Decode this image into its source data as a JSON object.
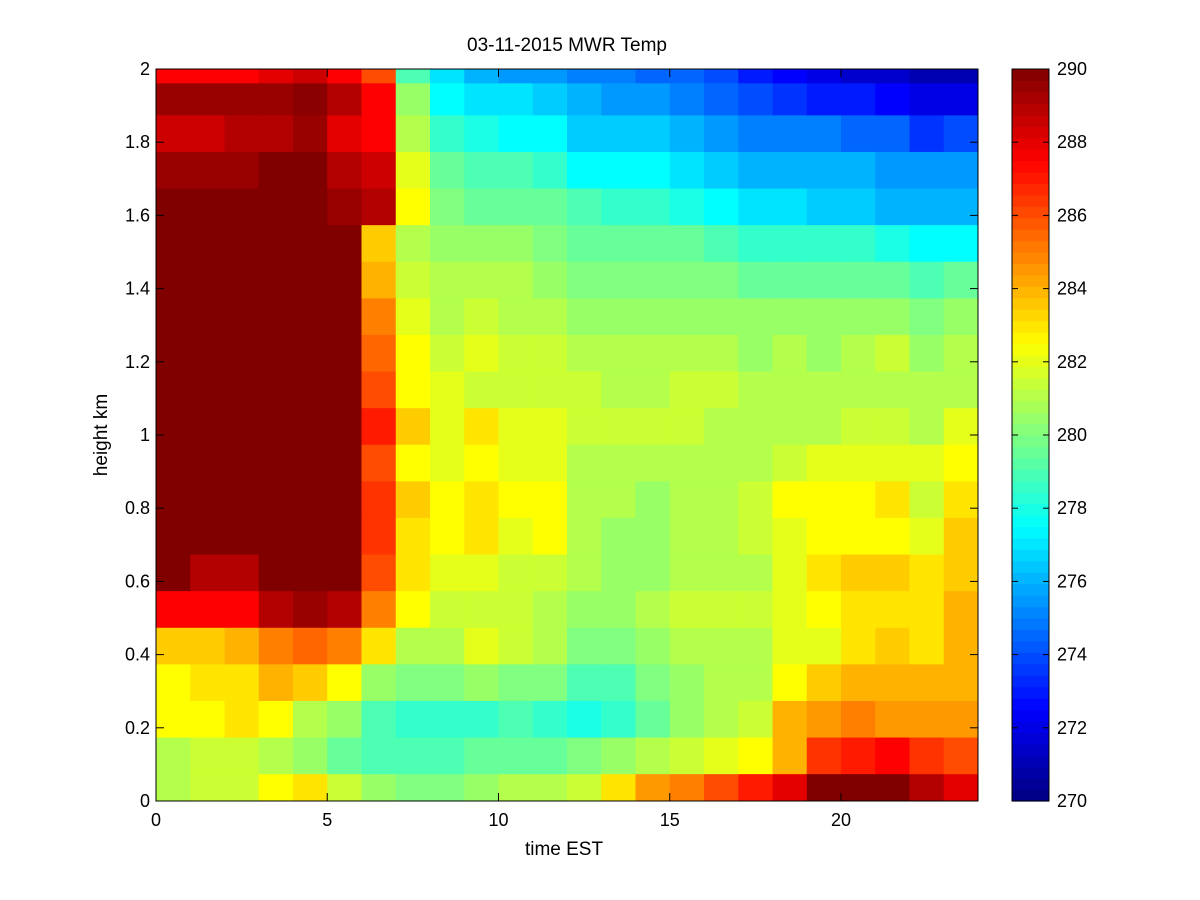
{
  "chart_data": {
    "type": "heatmap",
    "title": "03-11-2015 MWR Temp",
    "xlabel": "time EST",
    "ylabel": "height km",
    "xlim": [
      0,
      24
    ],
    "ylim": [
      0,
      2
    ],
    "x_ticks": [
      0,
      5,
      10,
      15,
      20
    ],
    "y_ticks": [
      0,
      0.2,
      0.4,
      0.6,
      0.8,
      1,
      1.2,
      1.4,
      1.6,
      1.8,
      2
    ],
    "y_tick_labels": [
      "0",
      "0.2",
      "0.4",
      "0.6",
      "0.8",
      "1",
      "1.2",
      "1.4",
      "1.6",
      "1.8",
      "2"
    ],
    "x_centers": [
      0.5,
      1.5,
      2.5,
      3.5,
      4.5,
      5.5,
      6.5,
      7.5,
      8.5,
      9.5,
      10.5,
      11.5,
      12.5,
      13.5,
      14.5,
      15.5,
      16.5,
      17.5,
      18.5,
      19.5,
      20.5,
      21.5,
      22.5,
      23.5
    ],
    "y_centers": [
      0.025,
      0.125,
      0.225,
      0.325,
      0.425,
      0.525,
      0.625,
      0.725,
      0.825,
      0.925,
      1.025,
      1.125,
      1.225,
      1.325,
      1.425,
      1.525,
      1.625,
      1.725,
      1.825,
      1.925,
      2.0
    ],
    "colorbar": {
      "colormap": "jet",
      "clim": [
        270,
        290
      ],
      "ticks": [
        270,
        272,
        274,
        276,
        278,
        280,
        282,
        284,
        286,
        288,
        290
      ]
    },
    "z_rows_bottom_to_top": [
      [
        281.0,
        281.5,
        281.5,
        282.5,
        283.0,
        281.5,
        280.5,
        280.0,
        280.0,
        280.5,
        281.0,
        281.0,
        281.5,
        283.0,
        284.5,
        285.0,
        286.0,
        287.0,
        288.0,
        290.0,
        290.0,
        290.0,
        289.0,
        288.0
      ],
      [
        281.0,
        281.5,
        281.5,
        281.0,
        280.5,
        279.5,
        279.0,
        279.0,
        279.0,
        279.5,
        279.5,
        279.5,
        280.0,
        280.5,
        281.0,
        281.5,
        282.0,
        282.5,
        284.0,
        286.5,
        287.0,
        287.5,
        286.5,
        286.0
      ],
      [
        282.5,
        282.5,
        283.0,
        282.5,
        281.0,
        280.5,
        279.0,
        278.5,
        278.5,
        278.5,
        279.0,
        278.5,
        278.0,
        278.5,
        279.5,
        280.5,
        281.0,
        281.5,
        284.0,
        284.5,
        285.0,
        284.5,
        284.5,
        284.5
      ],
      [
        282.5,
        283.0,
        283.0,
        284.0,
        283.5,
        282.5,
        280.5,
        280.0,
        280.0,
        280.5,
        280.0,
        280.0,
        279.0,
        279.0,
        280.0,
        280.5,
        281.0,
        281.0,
        282.5,
        283.5,
        284.0,
        284.0,
        284.0,
        284.0
      ],
      [
        283.5,
        283.5,
        284.0,
        285.0,
        285.5,
        285.0,
        283.0,
        281.0,
        281.0,
        282.0,
        281.5,
        281.0,
        280.0,
        280.0,
        280.5,
        281.0,
        281.0,
        281.0,
        282.0,
        282.0,
        283.0,
        283.5,
        283.0,
        284.0
      ],
      [
        287.5,
        287.5,
        287.5,
        289.0,
        289.5,
        289.0,
        285.0,
        282.5,
        281.5,
        281.5,
        281.5,
        281.0,
        280.5,
        280.5,
        281.0,
        281.5,
        281.5,
        281.5,
        282.0,
        282.5,
        283.0,
        283.0,
        283.0,
        284.0
      ],
      [
        290.0,
        289.0,
        289.0,
        290.0,
        290.0,
        290.0,
        286.0,
        283.0,
        282.0,
        282.0,
        281.5,
        281.5,
        281.0,
        280.5,
        280.5,
        281.0,
        281.0,
        281.0,
        282.0,
        283.0,
        283.5,
        283.5,
        283.0,
        283.5
      ],
      [
        290.0,
        290.0,
        290.0,
        290.0,
        290.0,
        290.0,
        286.5,
        283.0,
        282.5,
        283.0,
        282.0,
        282.5,
        281.0,
        280.5,
        280.5,
        281.0,
        281.0,
        281.5,
        282.0,
        282.5,
        282.5,
        282.5,
        282.0,
        283.5
      ],
      [
        290.0,
        290.0,
        290.0,
        290.0,
        290.0,
        290.0,
        286.5,
        283.5,
        282.5,
        283.0,
        282.5,
        282.5,
        281.0,
        281.0,
        280.5,
        281.0,
        281.0,
        281.5,
        282.5,
        282.5,
        282.5,
        283.0,
        281.5,
        283.0
      ],
      [
        290.0,
        290.0,
        290.0,
        290.0,
        290.0,
        290.0,
        286.0,
        282.5,
        282.0,
        282.5,
        282.0,
        282.0,
        281.0,
        281.0,
        281.0,
        281.0,
        281.0,
        281.0,
        281.5,
        282.0,
        282.0,
        282.0,
        282.0,
        282.5
      ],
      [
        290.0,
        290.0,
        290.0,
        290.0,
        290.0,
        290.0,
        287.0,
        283.5,
        282.0,
        283.0,
        282.0,
        282.0,
        281.5,
        281.5,
        281.5,
        281.5,
        281.0,
        281.0,
        281.0,
        281.0,
        281.5,
        281.5,
        281.0,
        282.0
      ],
      [
        290.0,
        290.0,
        290.0,
        290.0,
        290.0,
        290.0,
        286.0,
        282.5,
        282.0,
        281.5,
        281.5,
        281.5,
        281.5,
        281.0,
        281.0,
        281.5,
        281.5,
        281.0,
        281.0,
        281.0,
        281.0,
        281.0,
        281.0,
        281.0
      ],
      [
        290.0,
        290.0,
        290.0,
        290.0,
        290.0,
        290.0,
        285.5,
        282.5,
        281.5,
        282.0,
        281.5,
        281.5,
        281.0,
        281.0,
        281.0,
        281.0,
        281.0,
        280.5,
        281.0,
        280.5,
        281.0,
        281.5,
        280.5,
        281.0
      ],
      [
        290.0,
        290.0,
        290.0,
        290.0,
        290.0,
        290.0,
        285.0,
        282.0,
        281.0,
        281.5,
        281.0,
        281.0,
        280.5,
        280.5,
        280.5,
        280.5,
        280.5,
        280.5,
        280.5,
        280.5,
        280.5,
        280.5,
        280.0,
        280.5
      ],
      [
        290.0,
        290.0,
        290.0,
        290.0,
        290.0,
        290.0,
        284.0,
        281.5,
        281.0,
        281.0,
        281.0,
        280.5,
        280.0,
        280.0,
        280.0,
        280.0,
        280.0,
        279.5,
        279.5,
        279.5,
        279.5,
        279.5,
        279.0,
        279.5
      ],
      [
        290.0,
        290.0,
        290.0,
        290.0,
        290.0,
        290.0,
        283.5,
        281.0,
        280.5,
        280.5,
        280.5,
        280.0,
        279.5,
        279.5,
        279.5,
        279.5,
        279.0,
        278.5,
        278.5,
        278.5,
        278.5,
        278.0,
        277.5,
        277.5
      ],
      [
        290.0,
        290.0,
        290.0,
        290.0,
        290.0,
        289.5,
        289.0,
        282.5,
        280.0,
        279.5,
        279.5,
        279.5,
        279.0,
        278.5,
        278.5,
        278.0,
        277.5,
        277.0,
        277.0,
        276.5,
        276.5,
        276.0,
        276.0,
        276.0
      ],
      [
        289.5,
        289.5,
        289.5,
        290.0,
        290.0,
        289.0,
        288.5,
        282.0,
        279.5,
        279.0,
        279.0,
        278.5,
        277.5,
        277.5,
        277.5,
        277.0,
        276.5,
        276.0,
        276.0,
        276.0,
        276.0,
        275.5,
        275.5,
        275.5
      ],
      [
        288.5,
        288.5,
        289.0,
        289.0,
        289.5,
        288.0,
        287.5,
        281.0,
        278.5,
        278.0,
        277.5,
        277.5,
        276.5,
        276.5,
        276.5,
        276.0,
        275.5,
        275.0,
        275.0,
        275.0,
        274.5,
        274.5,
        273.5,
        274.0
      ],
      [
        289.5,
        289.5,
        289.5,
        289.5,
        289.8,
        289.0,
        287.5,
        280.5,
        277.5,
        277.0,
        277.0,
        276.5,
        276.0,
        275.5,
        275.5,
        275.0,
        274.5,
        274.0,
        273.5,
        273.0,
        273.0,
        272.5,
        272.0,
        272.0
      ],
      [
        287.5,
        287.5,
        287.5,
        288.0,
        288.5,
        287.5,
        286.0,
        279.0,
        277.0,
        276.0,
        275.5,
        275.5,
        275.0,
        275.0,
        274.5,
        274.5,
        274.0,
        273.0,
        272.5,
        272.0,
        271.5,
        271.5,
        271.0,
        271.0
      ]
    ]
  }
}
